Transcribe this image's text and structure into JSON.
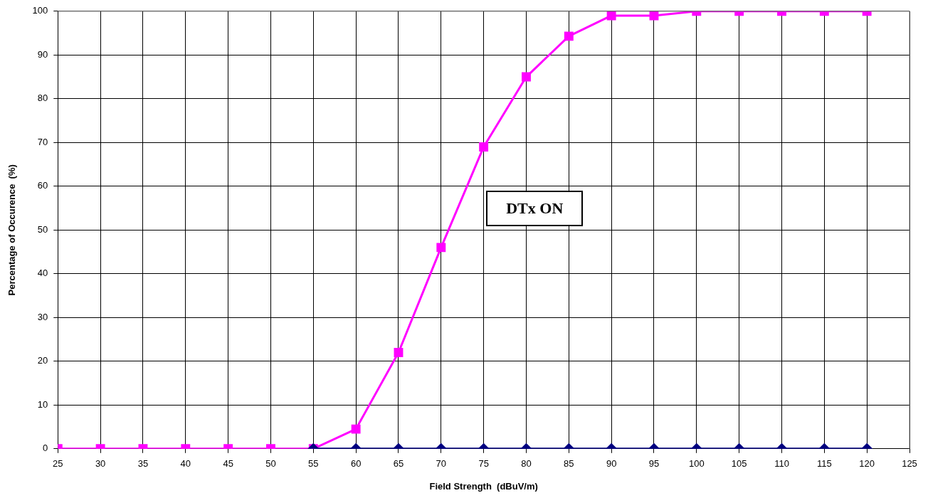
{
  "chart_data": {
    "type": "line",
    "xlabel": "Field Strength  (dBuV/m)",
    "ylabel": "Percentage of Occurence  (%)",
    "x": [
      25,
      30,
      35,
      40,
      45,
      50,
      55,
      60,
      65,
      70,
      75,
      80,
      85,
      90,
      95,
      100,
      105,
      110,
      115,
      120
    ],
    "series": [
      {
        "color": "#000080",
        "marker": "diamond",
        "values": [
          null,
          null,
          null,
          null,
          null,
          null,
          0,
          0,
          0,
          0,
          0,
          0,
          0,
          0,
          0,
          0,
          0,
          0,
          0,
          0
        ]
      },
      {
        "color": "#ff00ff",
        "marker": "square",
        "values": [
          0,
          0,
          0,
          0,
          0,
          0,
          0,
          4.5,
          22,
          46,
          69,
          85,
          94.3,
          99,
          99,
          100,
          100,
          100,
          100,
          100
        ]
      }
    ],
    "xlim": [
      25,
      125
    ],
    "xticks": [
      25,
      30,
      35,
      40,
      45,
      50,
      55,
      60,
      65,
      70,
      75,
      80,
      85,
      90,
      95,
      100,
      105,
      110,
      115,
      120,
      125
    ],
    "ylim": [
      0,
      100
    ],
    "yticks": [
      0,
      10,
      20,
      30,
      40,
      50,
      60,
      70,
      80,
      90,
      100
    ],
    "grid": true,
    "legend": false,
    "line_style": "solid",
    "annotations": [
      "DTx ON"
    ]
  }
}
